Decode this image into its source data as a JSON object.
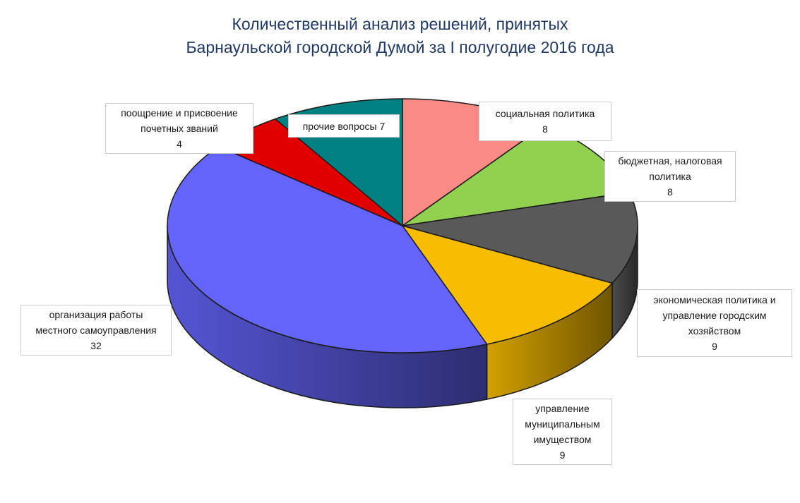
{
  "chart_data": {
    "type": "pie",
    "title_line1": "Количественный анализ решений, принятых",
    "title_line2": "Барнаульской городской Думой за I  полугодие 2016 года",
    "slices": [
      {
        "label": "социальная политика",
        "value": 8,
        "color": "#f98a86"
      },
      {
        "label": "бюджетная, налоговая политика",
        "value": 8,
        "color": "#92d050"
      },
      {
        "label": "экономическая политика и управление городским хозяйством",
        "value": 9,
        "color": "#595959"
      },
      {
        "label": "управление муниципальным имуществом",
        "value": 9,
        "color": "#f8bd00"
      },
      {
        "label": "организация работы местного самоуправления",
        "value": 32,
        "color": "#6464fa"
      },
      {
        "label": "поощрение и присвоение почетных званий",
        "value": 4,
        "color": "#e00000"
      },
      {
        "label": "прочие вопросы",
        "value": 7,
        "color": "#008080"
      }
    ]
  },
  "labels": {
    "social": {
      "line1": "социальная политика",
      "value": "8"
    },
    "budget": {
      "line1": "бюджетная, налоговая",
      "line2": "политика",
      "value": "8"
    },
    "economic": {
      "line1": "экономическая политика и",
      "line2": "управление городским",
      "line3": "хозяйством",
      "value": "9"
    },
    "property": {
      "line1": "управление",
      "line2": "муниципальным",
      "line3": "имуществом",
      "value": "9"
    },
    "selfgov": {
      "line1": "организация работы",
      "line2": "местного самоуправления",
      "value": "32"
    },
    "awards": {
      "line1": "поощрение и присвоение",
      "line2": "почетных званий",
      "value": "4"
    },
    "other": {
      "text": "прочие вопросы  7"
    }
  }
}
